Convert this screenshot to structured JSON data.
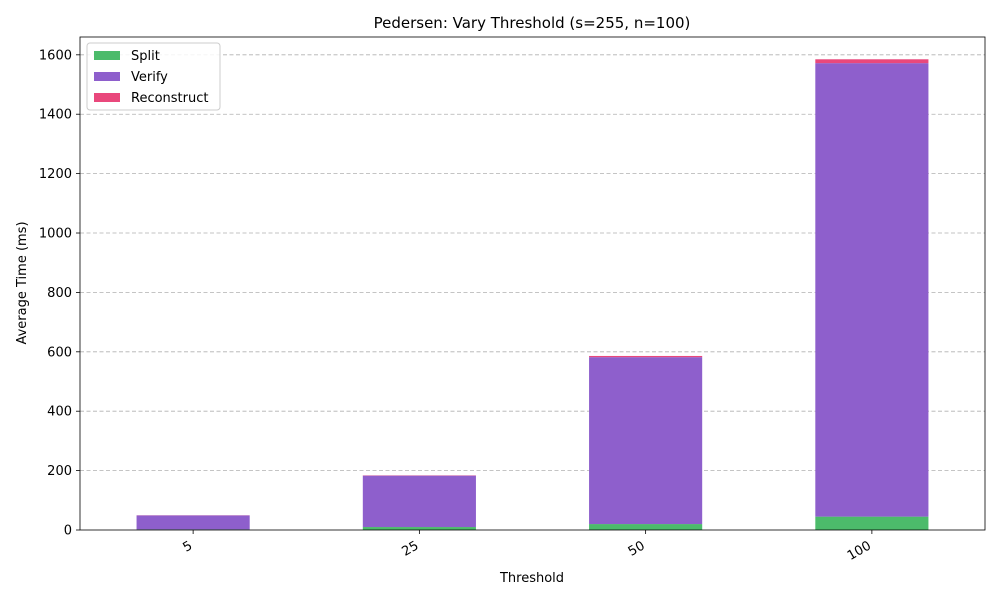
{
  "chart_data": {
    "type": "bar",
    "stacked": true,
    "title": "Pedersen: Vary Threshold (s=255, n=100)",
    "xlabel": "Threshold",
    "ylabel": "Average Time (ms)",
    "categories": [
      "5",
      "25",
      "50",
      "100"
    ],
    "ylim": [
      0,
      1660
    ],
    "yticks": [
      0,
      200,
      400,
      600,
      800,
      1000,
      1200,
      1400,
      1600
    ],
    "grid": "y-dashed",
    "legend_position": "top-left",
    "series": [
      {
        "name": "Split",
        "color": "#4cbb6b",
        "values": [
          2,
          10,
          20,
          45
        ]
      },
      {
        "name": "Verify",
        "color": "#8e5fcc",
        "values": [
          47,
          173,
          562,
          1527
        ]
      },
      {
        "name": "Reconstruct",
        "color": "#e9487c",
        "values": [
          0.5,
          1,
          4,
          13
        ]
      }
    ]
  }
}
